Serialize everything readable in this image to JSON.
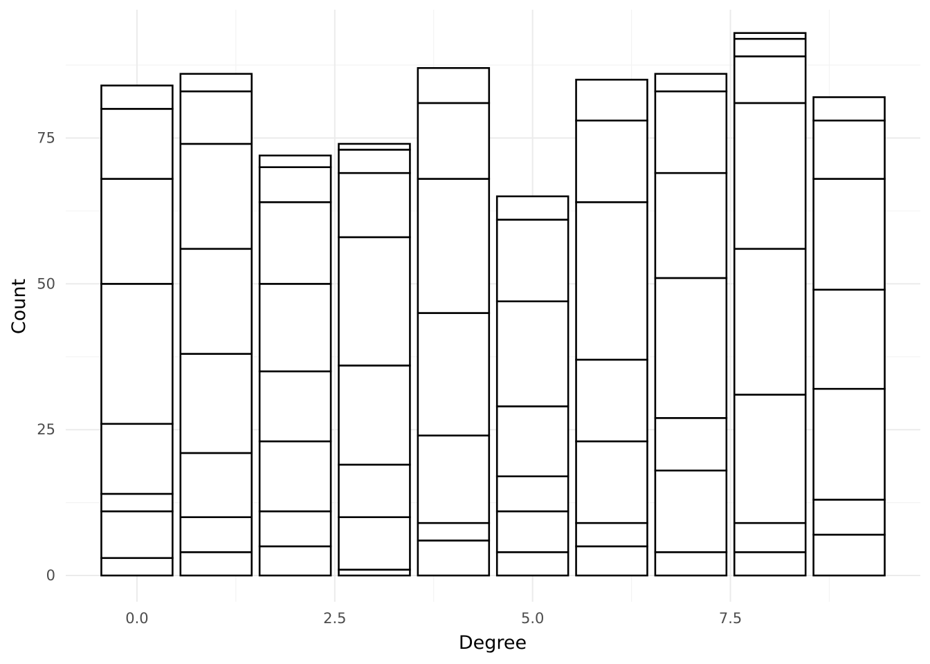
{
  "chart_data": {
    "type": "bar",
    "stacked": true,
    "xlabel": "Degree",
    "ylabel": "Count",
    "xlim": [
      -0.9,
      9.9
    ],
    "ylim": [
      -4.5,
      97
    ],
    "x_ticks": [
      0,
      2.5,
      5,
      7.5
    ],
    "x_tick_labels": [
      "0.0",
      "2.5",
      "5.0",
      "7.5"
    ],
    "y_ticks": [
      0,
      25,
      50,
      75
    ],
    "y_tick_labels": [
      "0",
      "25",
      "50",
      "75"
    ],
    "bar_width": 0.9,
    "grid": true,
    "bars": [
      {
        "x": 0,
        "boundaries": [
          0,
          3,
          11,
          14,
          26,
          50,
          68,
          80,
          84
        ]
      },
      {
        "x": 1,
        "boundaries": [
          0,
          4,
          10,
          21,
          38,
          56,
          74,
          83,
          86
        ]
      },
      {
        "x": 2,
        "boundaries": [
          0,
          5,
          11,
          23,
          35,
          50,
          64,
          70,
          72
        ]
      },
      {
        "x": 3,
        "boundaries": [
          0,
          1,
          10,
          19,
          36,
          58,
          69,
          73,
          74
        ]
      },
      {
        "x": 4,
        "boundaries": [
          0,
          6,
          9,
          24,
          45,
          68,
          81,
          87
        ]
      },
      {
        "x": 5,
        "boundaries": [
          0,
          4,
          11,
          17,
          29,
          47,
          61,
          65
        ]
      },
      {
        "x": 6,
        "boundaries": [
          0,
          5,
          9,
          23,
          37,
          64,
          78,
          85
        ]
      },
      {
        "x": 7,
        "boundaries": [
          0,
          4,
          18,
          27,
          51,
          69,
          83,
          86
        ]
      },
      {
        "x": 8,
        "boundaries": [
          0,
          4,
          9,
          31,
          56,
          81,
          89,
          92,
          93
        ]
      },
      {
        "x": 9,
        "boundaries": [
          0,
          7,
          13,
          32,
          49,
          68,
          78,
          82
        ]
      }
    ]
  }
}
